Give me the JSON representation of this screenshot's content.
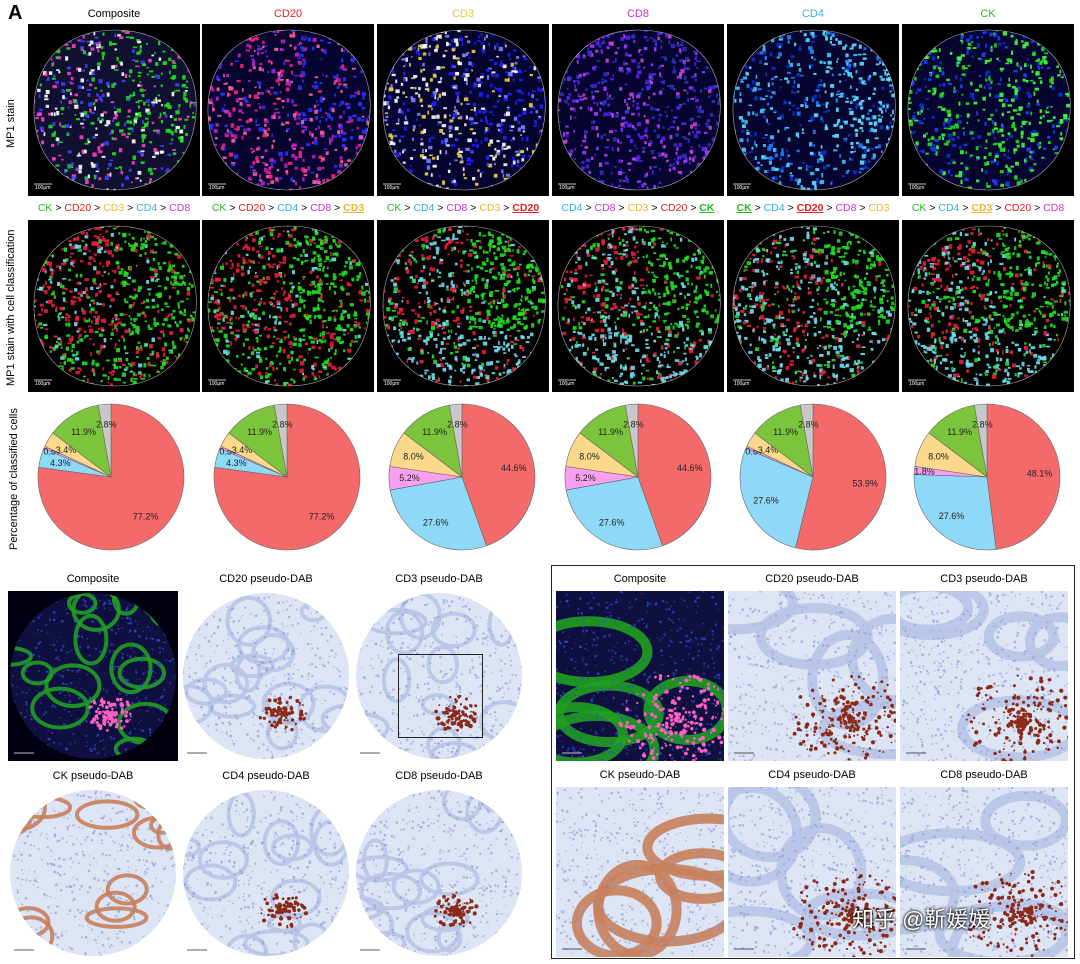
{
  "panel_letter": "A",
  "row_labels": {
    "mp1": "MP1 stain",
    "classified": "MP1 stain with cell classification",
    "percent": "Percentage of classified cells"
  },
  "columns": [
    {
      "title": "Composite",
      "color": "#000000"
    },
    {
      "title": "CD20",
      "color": "#e0202a"
    },
    {
      "title": "CD3",
      "color": "#f0c040"
    },
    {
      "title": "CD8",
      "color": "#d030d0"
    },
    {
      "title": "CD4",
      "color": "#30b0e0"
    },
    {
      "title": "CK",
      "color": "#20c020"
    }
  ],
  "marker_colors": {
    "CK": "#22bb22",
    "CD20": "#e02020",
    "CD3": "#e8b830",
    "CD4": "#30b0e0",
    "CD8": "#d030d0"
  },
  "hierarchies": [
    {
      "tokens": [
        {
          "t": "CK",
          "m": "CK"
        },
        {
          "t": " > "
        },
        {
          "t": "CD20",
          "m": "CD20"
        },
        {
          "t": " > "
        },
        {
          "t": "CD3",
          "m": "CD3"
        },
        {
          "t": " > "
        },
        {
          "t": "CD4",
          "m": "CD4"
        },
        {
          "t": " > "
        },
        {
          "t": "CD8",
          "m": "CD8"
        }
      ]
    },
    {
      "tokens": [
        {
          "t": "CK",
          "m": "CK"
        },
        {
          "t": " > "
        },
        {
          "t": "CD20",
          "m": "CD20"
        },
        {
          "t": " > "
        },
        {
          "t": "CD4",
          "m": "CD4"
        },
        {
          "t": " > "
        },
        {
          "t": "CD8",
          "m": "CD8"
        },
        {
          "t": " > "
        },
        {
          "t": "CD3",
          "m": "CD3",
          "u": true
        }
      ]
    },
    {
      "tokens": [
        {
          "t": "CK",
          "m": "CK"
        },
        {
          "t": " > "
        },
        {
          "t": "CD4",
          "m": "CD4"
        },
        {
          "t": " > "
        },
        {
          "t": "CD8",
          "m": "CD8"
        },
        {
          "t": " > "
        },
        {
          "t": "CD3",
          "m": "CD3"
        },
        {
          "t": " > "
        },
        {
          "t": "CD20",
          "m": "CD20",
          "u": true
        }
      ]
    },
    {
      "tokens": [
        {
          "t": "CD4",
          "m": "CD4"
        },
        {
          "t": " > "
        },
        {
          "t": "CD8",
          "m": "CD8"
        },
        {
          "t": " > "
        },
        {
          "t": "CD3",
          "m": "CD3"
        },
        {
          "t": " > "
        },
        {
          "t": "CD20",
          "m": "CD20"
        },
        {
          "t": " > "
        },
        {
          "t": "CK",
          "m": "CK",
          "u": true
        }
      ]
    },
    {
      "tokens": [
        {
          "t": "CK",
          "m": "CK",
          "u": true
        },
        {
          "t": " > "
        },
        {
          "t": "CD4",
          "m": "CD4"
        },
        {
          "t": " > "
        },
        {
          "t": "CD20",
          "m": "CD20",
          "u": true
        },
        {
          "t": " > "
        },
        {
          "t": "CD8",
          "m": "CD8"
        },
        {
          "t": " > "
        },
        {
          "t": "CD3",
          "m": "CD3"
        }
      ]
    },
    {
      "tokens": [
        {
          "t": "CK",
          "m": "CK"
        },
        {
          "t": " > "
        },
        {
          "t": "CD4",
          "m": "CD4"
        },
        {
          "t": " > "
        },
        {
          "t": "CD3",
          "m": "CD3",
          "u": true
        },
        {
          "t": " > "
        },
        {
          "t": "CD20",
          "m": "CD20"
        },
        {
          "t": " > "
        },
        {
          "t": "CD8",
          "m": "CD8"
        }
      ]
    }
  ],
  "scale_label": "100µm",
  "scale_label_dab": "200µm",
  "chart_data": [
    {
      "type": "pie",
      "slices": [
        {
          "label": "77.2%",
          "value": 77.2,
          "color": "#f46a6a"
        },
        {
          "label": "4.3%",
          "value": 4.3,
          "color": "#8ed8f8"
        },
        {
          "label": "0.5%",
          "value": 0.5,
          "color": "#f7a0f0"
        },
        {
          "label": "3.4%",
          "value": 3.4,
          "color": "#fbd88a"
        },
        {
          "label": "11.9%",
          "value": 11.9,
          "color": "#7cc43c"
        },
        {
          "label": "2.8%",
          "value": 2.8,
          "color": "#c8c8c8"
        }
      ]
    },
    {
      "type": "pie",
      "slices": [
        {
          "label": "77.2%",
          "value": 77.2,
          "color": "#f46a6a"
        },
        {
          "label": "4.3%",
          "value": 4.3,
          "color": "#8ed8f8"
        },
        {
          "label": "0.5%",
          "value": 0.5,
          "color": "#f7a0f0"
        },
        {
          "label": "3.4%",
          "value": 3.4,
          "color": "#fbd88a"
        },
        {
          "label": "11.9%",
          "value": 11.9,
          "color": "#7cc43c"
        },
        {
          "label": "2.8%",
          "value": 2.8,
          "color": "#c8c8c8"
        }
      ]
    },
    {
      "type": "pie",
      "slices": [
        {
          "label": "44.6%",
          "value": 44.6,
          "color": "#f46a6a"
        },
        {
          "label": "27.6%",
          "value": 27.6,
          "color": "#8ed8f8"
        },
        {
          "label": "5.2%",
          "value": 5.2,
          "color": "#f7a0f0"
        },
        {
          "label": "8.0%",
          "value": 8.0,
          "color": "#fbd88a"
        },
        {
          "label": "11.9%",
          "value": 11.9,
          "color": "#7cc43c"
        },
        {
          "label": "2.8%",
          "value": 2.8,
          "color": "#c8c8c8"
        }
      ]
    },
    {
      "type": "pie",
      "slices": [
        {
          "label": "44.6%",
          "value": 44.6,
          "color": "#f46a6a"
        },
        {
          "label": "27.6%",
          "value": 27.6,
          "color": "#8ed8f8"
        },
        {
          "label": "5.2%",
          "value": 5.2,
          "color": "#f7a0f0"
        },
        {
          "label": "8.0%",
          "value": 8.0,
          "color": "#fbd88a"
        },
        {
          "label": "11.9%",
          "value": 11.9,
          "color": "#7cc43c"
        },
        {
          "label": "2.8%",
          "value": 2.8,
          "color": "#c8c8c8"
        }
      ]
    },
    {
      "type": "pie",
      "slices": [
        {
          "label": "53.9%",
          "value": 53.9,
          "color": "#f46a6a"
        },
        {
          "label": "27.6%",
          "value": 27.6,
          "color": "#8ed8f8"
        },
        {
          "label": "0.5%",
          "value": 0.5,
          "color": "#f7a0f0"
        },
        {
          "label": "3.4%",
          "value": 3.4,
          "color": "#fbd88a"
        },
        {
          "label": "11.9%",
          "value": 11.9,
          "color": "#7cc43c"
        },
        {
          "label": "2.8%",
          "value": 2.8,
          "color": "#c8c8c8"
        }
      ]
    },
    {
      "type": "pie",
      "slices": [
        {
          "label": "48.1%",
          "value": 48.1,
          "color": "#f46a6a"
        },
        {
          "label": "27.6%",
          "value": 27.6,
          "color": "#8ed8f8"
        },
        {
          "label": "1.8%",
          "value": 1.8,
          "color": "#f7a0f0"
        },
        {
          "label": "8.0%",
          "value": 8.0,
          "color": "#fbd88a"
        },
        {
          "label": "11.9%",
          "value": 11.9,
          "color": "#7cc43c"
        },
        {
          "label": "2.8%",
          "value": 2.8,
          "color": "#c8c8c8"
        }
      ]
    }
  ],
  "dab_left": {
    "titles": [
      "Composite",
      "CD20 pseudo-DAB",
      "CD3 pseudo-DAB",
      "CK pseudo-DAB",
      "CD4 pseudo-DAB",
      "CD8 pseudo-DAB"
    ]
  },
  "dab_right": {
    "titles": [
      "Composite",
      "CD20 pseudo-DAB",
      "CD3 pseudo-DAB",
      "CK pseudo-DAB",
      "CD4 pseudo-DAB",
      "CD8 pseudo-DAB"
    ]
  },
  "watermark": "知乎 @靳媛媛"
}
